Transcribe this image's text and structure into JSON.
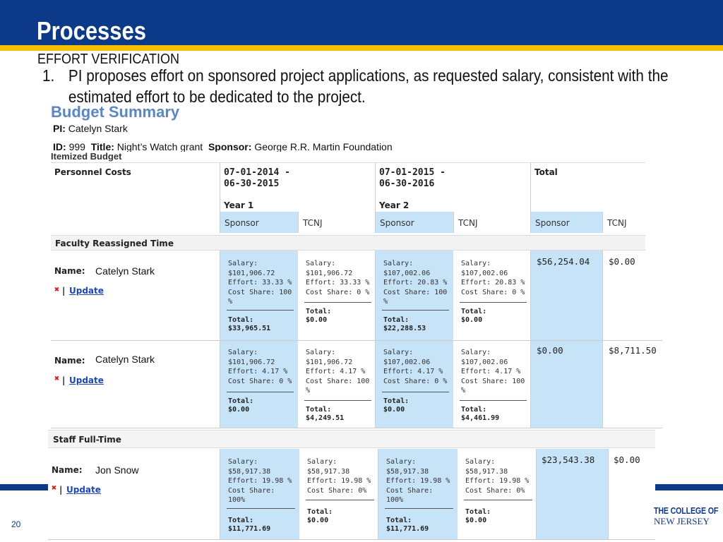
{
  "slide": {
    "title": "Processes",
    "section": "EFFORT VERIFICATION",
    "point_number": "1.",
    "point_text": "PI proposes effort on sponsored project applications, as requested salary, consistent with the estimated effort to be dedicated to the project.",
    "slide_number": "20",
    "logo_line1": "THE COLLEGE OF",
    "logo_line2": "NEW JERSEY",
    "colors": {
      "header": "#0c3a88",
      "gold": "#f6c200",
      "highlight": "#c7e3f8",
      "link": "#1e45b6"
    }
  },
  "budget": {
    "title": "Budget Summary",
    "pi_label": "PI:",
    "pi_value": "Catelyn Stark",
    "id_label": "ID:",
    "id_value": "999",
    "title_label": "Title:",
    "title_value": "Night’s Watch grant",
    "sponsor_label": "Sponsor:",
    "sponsor_value": "George R.R. Martin Foundation",
    "itemized": "Itemized Budget",
    "header": {
      "personnel": "Personnel Costs",
      "year1_dates": "07-01-2014 -\n06-30-2015",
      "year1": "Year 1",
      "year2_dates": "07-01-2015 -\n06-30-2016",
      "year2": "Year 2",
      "total": "Total",
      "sponsor": "Sponsor",
      "tcnj": "TCNJ"
    },
    "faculty_section": "Faculty Reassigned Time",
    "staff_section": "Staff Full-Time",
    "name_label": "Name:",
    "update_label": "Update",
    "remove_icon": "x-icon",
    "rows": [
      {
        "person": "Catelyn Stark",
        "y1s": "Salary:\n$101,906.72\nEffort: 33.33 %\nCost Share: 100\n%",
        "y1s_total": "Total:\n$33,965.51",
        "y1t": "Salary:\n$101,906.72\nEffort: 33.33 %\nCost Share: 0 %",
        "y1t_total": "Total:\n$0.00",
        "y2s": "Salary:\n$107,002.06\nEffort: 20.83 %\nCost Share: 100\n%",
        "y2s_total": "Total:\n$22,288.53",
        "y2t": "Salary:\n$107,002.06\nEffort: 20.83 %\nCost Share: 0 %",
        "y2t_total": "Total:\n$0.00",
        "tot_s": "$56,254.04",
        "tot_t": "$0.00"
      },
      {
        "person": "Catelyn Stark",
        "y1s": "Salary:\n$101,906.72\nEffort: 4.17 %\nCost Share: 0 %",
        "y1s_total": "Total:\n$0.00",
        "y1t": "Salary:\n$101,906.72\nEffort: 4.17 %\nCost Share: 100\n%",
        "y1t_total": "Total:\n$4,249.51",
        "y2s": "Salary:\n$107,002.06\nEffort: 4.17 %\nCost Share: 0 %",
        "y2s_total": "Total:\n$0.00",
        "y2t": "Salary:\n$107,002.06\nEffort: 4.17 %\nCost Share: 100\n%",
        "y2t_total": "Total:\n$4,461.99",
        "tot_s": "$0.00",
        "tot_t": "$8,711.50"
      },
      {
        "person": "Jon Snow",
        "y1s": "Salary:\n$58,917.38\nEffort: 19.98 %\nCost Share:\n100%",
        "y1s_total": "Total:\n$11,771.69",
        "y1t": "Salary:\n$58,917.38\nEffort: 19.98 %\nCost Share: 0%",
        "y1t_total": "Total:\n$0.00",
        "y2s": "Salary:\n$58,917.38\nEffort: 19.98 %\nCost Share:\n100%",
        "y2s_total": "Total:\n$11,771.69",
        "y2t": "Salary:\n$58,917.38\nEffort: 19.98 %\nCost Share: 0%",
        "y2t_total": "Total:\n$0.00",
        "tot_s": "$23,543.38",
        "tot_t": "$0.00"
      }
    ]
  }
}
